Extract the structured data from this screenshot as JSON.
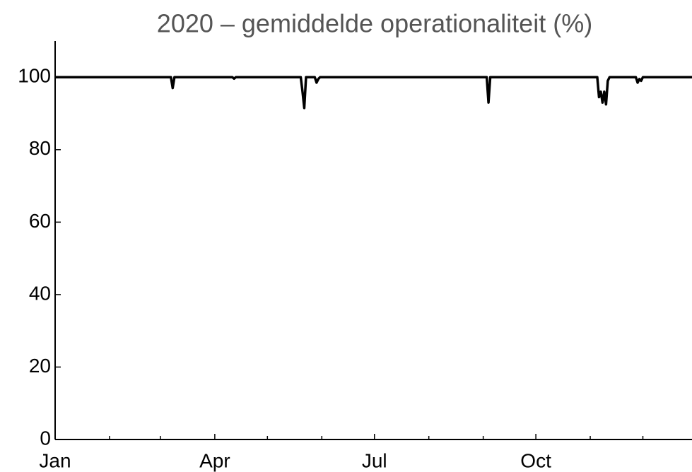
{
  "chart_data": {
    "type": "line",
    "title": "2020 – gemiddelde operationaliteit (%)",
    "x": [
      0,
      66,
      67,
      68,
      69,
      101,
      102,
      103,
      140,
      141,
      142,
      143,
      144,
      148,
      149,
      150,
      151,
      246,
      247,
      248,
      249,
      309,
      310,
      311,
      312,
      313,
      314,
      315,
      316,
      317,
      331,
      332,
      333,
      334,
      335,
      363
    ],
    "series": [
      {
        "name": "operationaliteit",
        "color": "#000000",
        "values": [
          100,
          100,
          97,
          100,
          100,
          100,
          99.6,
          100,
          100,
          96,
          91.5,
          100,
          100,
          100,
          98.5,
          99.5,
          100,
          100,
          93,
          100,
          100,
          100,
          94.5,
          96,
          93,
          96,
          92.5,
          99,
          100,
          100,
          100,
          98.5,
          99.5,
          99,
          100,
          100
        ]
      }
    ],
    "xlim": [
      0,
      363
    ],
    "xticks": [
      {
        "value": 0,
        "label": "Jan"
      },
      {
        "value": 91,
        "label": "Apr"
      },
      {
        "value": 182,
        "label": "Jul"
      },
      {
        "value": 274,
        "label": "Oct"
      }
    ],
    "xminor_ticks": [
      31,
      60,
      121,
      152,
      213,
      244,
      305,
      335
    ],
    "ylim": [
      0,
      110
    ],
    "yticks": [
      0,
      20,
      40,
      60,
      80,
      100
    ],
    "grid": false
  }
}
